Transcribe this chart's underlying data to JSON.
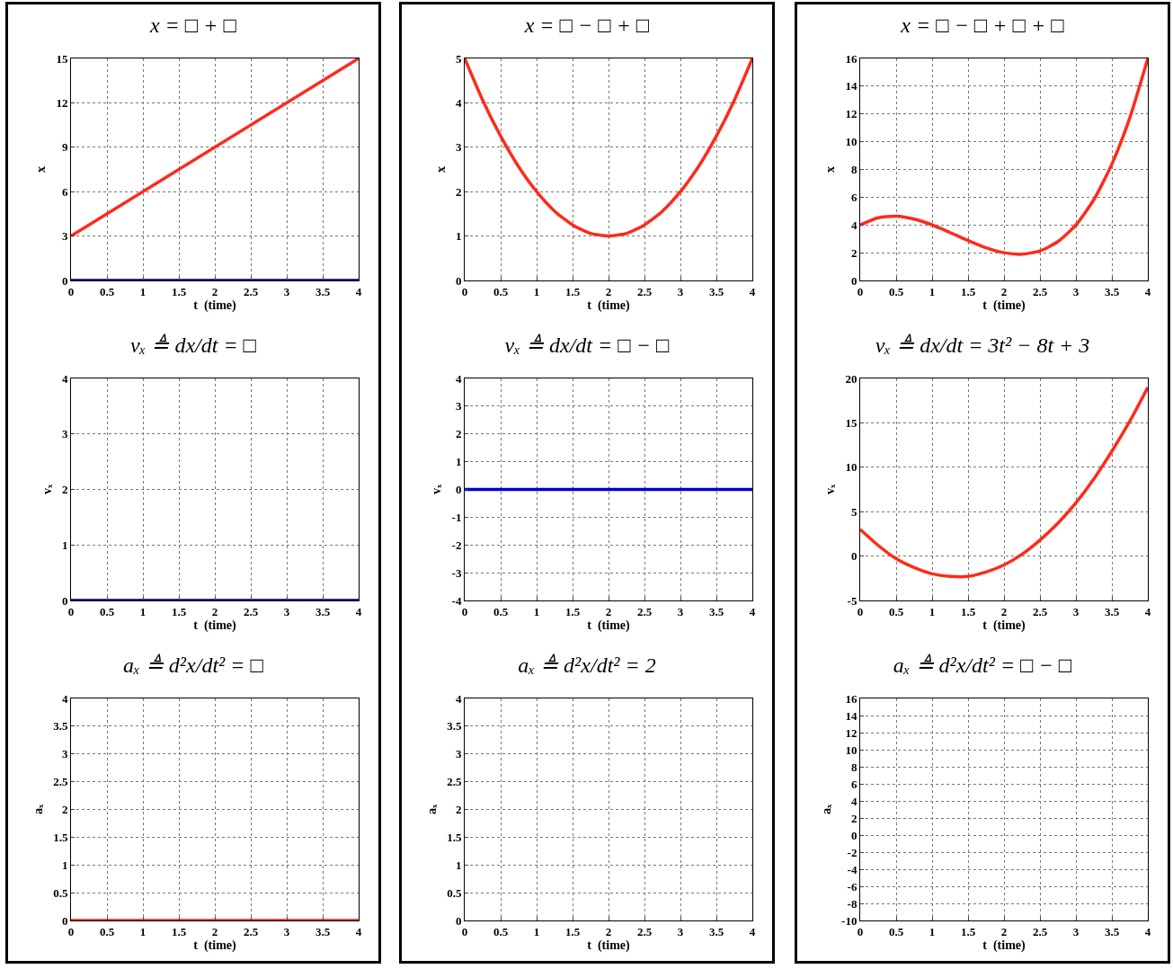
{
  "chart_data": [
    {
      "type": "line",
      "title": "x = □ + □",
      "xlabel": "t  (time)",
      "ylabel": "x",
      "x": [
        0,
        4
      ],
      "xlim": [
        0,
        4
      ],
      "xticks": [
        0,
        0.5,
        1,
        1.5,
        2,
        2.5,
        3,
        3.5,
        4
      ],
      "ylim": [
        0,
        15
      ],
      "yticks": [
        0,
        3,
        6,
        9,
        12,
        15
      ],
      "grid": true,
      "series": [
        {
          "color": "#000080",
          "values": [
            0,
            0
          ]
        },
        {
          "color": "#ff2a1a",
          "values": [
            3,
            15
          ]
        }
      ]
    },
    {
      "type": "line",
      "title": "vₓ ≜ dx/dt = □",
      "xlabel": "t  (time)",
      "ylabel": "vₓ",
      "x": [
        0,
        4
      ],
      "xlim": [
        0,
        4
      ],
      "xticks": [
        0,
        0.5,
        1,
        1.5,
        2,
        2.5,
        3,
        3.5,
        4
      ],
      "ylim": [
        0,
        4
      ],
      "yticks": [
        0,
        1,
        2,
        3,
        4
      ],
      "grid": true,
      "series": [
        {
          "color": "#000080",
          "values": [
            0,
            0
          ]
        }
      ]
    },
    {
      "type": "line",
      "title": "aₓ ≜ d²x/dt² = □",
      "xlabel": "t  (time)",
      "ylabel": "aₓ",
      "x": [
        0,
        4
      ],
      "xlim": [
        0,
        4
      ],
      "xticks": [
        0,
        0.5,
        1,
        1.5,
        2,
        2.5,
        3,
        3.5,
        4
      ],
      "ylim": [
        0,
        4
      ],
      "yticks": [
        0,
        0.5,
        1,
        1.5,
        2,
        2.5,
        3,
        3.5,
        4
      ],
      "grid": true,
      "series": [
        {
          "color": "#ff2a1a",
          "values": [
            0,
            0
          ]
        }
      ]
    },
    {
      "type": "line",
      "title": "x = □ − □ + □",
      "xlabel": "t  (time)",
      "ylabel": "x",
      "x": [
        0,
        0.25,
        0.5,
        0.75,
        1,
        1.25,
        1.5,
        1.75,
        2,
        2.25,
        2.5,
        2.75,
        3,
        3.25,
        3.5,
        3.75,
        4
      ],
      "xlim": [
        0,
        4
      ],
      "xticks": [
        0,
        0.5,
        1,
        1.5,
        2,
        2.5,
        3,
        3.5,
        4
      ],
      "ylim": [
        0,
        5
      ],
      "yticks": [
        0,
        1,
        2,
        3,
        4,
        5
      ],
      "grid": true,
      "series": [
        {
          "color": "#ff2a1a",
          "values": [
            5,
            4.06,
            3.25,
            2.56,
            2,
            1.56,
            1.25,
            1.06,
            1,
            1.06,
            1.25,
            1.56,
            2,
            2.56,
            3.25,
            4.06,
            5
          ]
        }
      ]
    },
    {
      "type": "line",
      "title": "vₓ ≜ dx/dt = □ − □",
      "xlabel": "t  (time)",
      "ylabel": "vₓ",
      "x": [
        0,
        4
      ],
      "xlim": [
        0,
        4
      ],
      "xticks": [
        0,
        0.5,
        1,
        1.5,
        2,
        2.5,
        3,
        3.5,
        4
      ],
      "ylim": [
        -4,
        4
      ],
      "yticks": [
        -4,
        -3,
        -2,
        -1,
        0,
        1,
        2,
        3,
        4
      ],
      "grid": true,
      "series": [
        {
          "color": "#0000cc",
          "values": [
            0,
            0
          ]
        }
      ]
    },
    {
      "type": "line",
      "title": "aₓ ≜ d²x/dt² = 2",
      "xlabel": "t  (time)",
      "ylabel": "aₓ",
      "xlim": [
        0,
        4
      ],
      "xticks": [
        0,
        0.5,
        1,
        1.5,
        2,
        2.5,
        3,
        3.5,
        4
      ],
      "ylim": [
        0,
        4
      ],
      "yticks": [
        0,
        0.5,
        1,
        1.5,
        2,
        2.5,
        3,
        3.5,
        4
      ],
      "grid": true
    },
    {
      "type": "line",
      "title": "x = □ − □ + □ + □",
      "xlabel": "t  (time)",
      "ylabel": "x",
      "x": [
        0,
        0.25,
        0.5,
        0.75,
        1,
        1.25,
        1.5,
        1.75,
        2,
        2.25,
        2.5,
        2.75,
        3,
        3.25,
        3.5,
        3.75,
        4
      ],
      "xlim": [
        0,
        4
      ],
      "xticks": [
        0,
        0.5,
        1,
        1.5,
        2,
        2.5,
        3,
        3.5,
        4
      ],
      "ylim": [
        0,
        16
      ],
      "yticks": [
        0,
        2,
        4,
        6,
        8,
        10,
        12,
        14,
        16
      ],
      "grid": true,
      "series": [
        {
          "color": "#ff2a1a",
          "values": [
            4,
            4.52,
            4.63,
            4.42,
            4,
            3.45,
            2.88,
            2.36,
            2,
            1.89,
            2.13,
            2.8,
            4,
            5.83,
            8.38,
            11.73,
            16
          ]
        }
      ]
    },
    {
      "type": "line",
      "title": "vₓ ≜ dx/dt = 3t² − 8t + 3",
      "xlabel": "t  (time)",
      "ylabel": "vₓ",
      "x": [
        0,
        0.25,
        0.5,
        0.75,
        1,
        1.25,
        1.5,
        1.75,
        2,
        2.25,
        2.5,
        2.75,
        3,
        3.25,
        3.5,
        3.75,
        4
      ],
      "xlim": [
        0,
        4
      ],
      "xticks": [
        0,
        0.5,
        1,
        1.5,
        2,
        2.5,
        3,
        3.5,
        4
      ],
      "ylim": [
        -5,
        20
      ],
      "yticks": [
        -5,
        0,
        5,
        10,
        15,
        20
      ],
      "grid": true,
      "series": [
        {
          "color": "#ff2a1a",
          "values": [
            3,
            1.2,
            -0.3,
            -1.3,
            -2,
            -2.3,
            -2.3,
            -1.8,
            -1,
            0.2,
            1.8,
            3.7,
            6,
            8.7,
            11.8,
            15.2,
            19
          ]
        }
      ]
    },
    {
      "type": "line",
      "title": "aₓ ≜ d²x/dt² = □ − □",
      "xlabel": "t  (time)",
      "ylabel": "aₓ",
      "xlim": [
        0,
        4
      ],
      "xticks": [
        0,
        0.5,
        1,
        1.5,
        2,
        2.5,
        3,
        3.5,
        4
      ],
      "ylim": [
        -10,
        16
      ],
      "yticks": [
        -10,
        -8,
        -6,
        -4,
        -2,
        0,
        2,
        4,
        6,
        8,
        10,
        12,
        14,
        16
      ],
      "grid": true
    }
  ]
}
